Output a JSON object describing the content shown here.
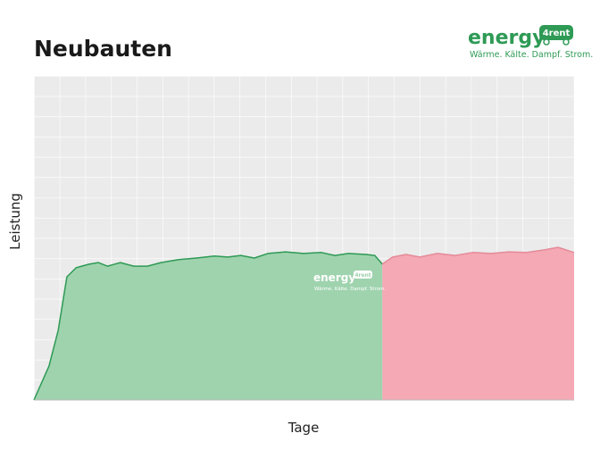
{
  "chart_data": {
    "type": "area",
    "title": "Neubauten",
    "xlabel": "Tage",
    "ylabel": "Leistung",
    "xlim": [
      0,
      100
    ],
    "ylim": [
      0,
      100
    ],
    "grid": true,
    "logo": {
      "brand": "energy",
      "badge": "4rent",
      "tagline": "Wärme. Kälte. Dampf. Strom."
    },
    "watermark": {
      "brand": "energy",
      "badge": "4rent",
      "tagline": "Wärme. Kälte. Dampf. Strom."
    },
    "series": [
      {
        "color": "#2e9a55",
        "fill": "#9fd3ae",
        "x": [
          0,
          2.8,
          4.5,
          6.1,
          7.8,
          10.2,
          11.9,
          13.6,
          16,
          18.5,
          21,
          23.5,
          26.8,
          30.1,
          33.4,
          35.9,
          38.3,
          40.8,
          43.3,
          46.6,
          49.9,
          53.2,
          55.7,
          58.2,
          61.5,
          63.1,
          64.5
        ],
        "values": [
          0,
          10.5,
          21.5,
          38,
          40.8,
          41.9,
          42.4,
          41.3,
          42.4,
          41.3,
          41.3,
          42.4,
          43.3,
          43.8,
          44.4,
          44.1,
          44.6,
          43.8,
          45.2,
          45.7,
          45.2,
          45.5,
          44.6,
          45.2,
          44.9,
          44.6,
          41.9
        ]
      },
      {
        "color": "#e58a99",
        "fill": "#f4a9b4",
        "x": [
          64.5,
          66.4,
          68.9,
          71.4,
          74.7,
          78,
          81.3,
          84.6,
          87.9,
          91.2,
          94.5,
          97,
          100
        ],
        "values": [
          41.9,
          44.1,
          44.9,
          44.1,
          45.2,
          44.6,
          45.5,
          45.2,
          45.7,
          45.5,
          46.3,
          47.1,
          45.5
        ]
      }
    ]
  }
}
